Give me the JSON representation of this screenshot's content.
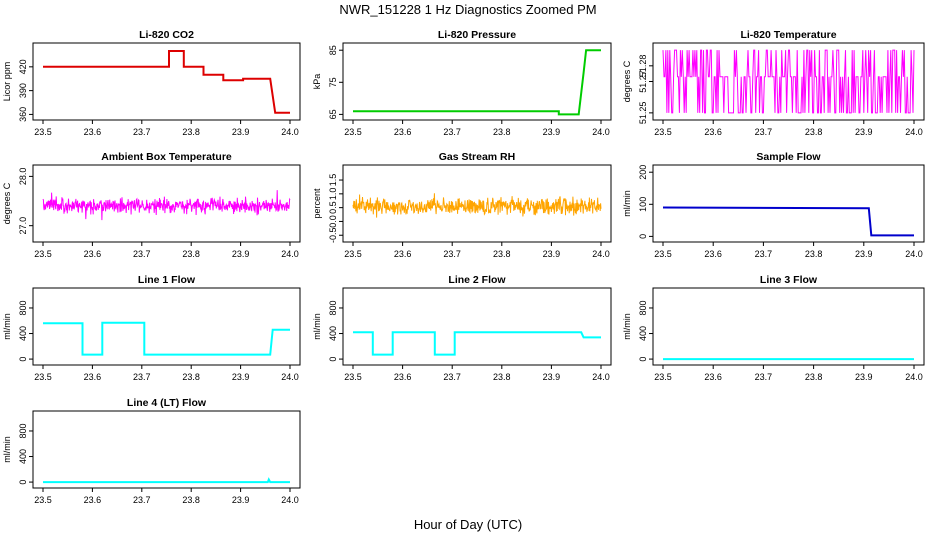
{
  "page": {
    "title": "NWR_151228  1 Hz Diagnostics Zoomed PM",
    "x_axis_title": "Hour of Day (UTC)"
  },
  "chart_data": [
    {
      "type": "line",
      "title": "Li-820 CO2",
      "ylabel": "Licor ppm",
      "color": "#dd0000",
      "xlim": [
        23.5,
        24.0
      ],
      "ylim": [
        358,
        445
      ],
      "x_ticks": [
        "23.5",
        "23.6",
        "23.7",
        "23.8",
        "23.9",
        "24.0"
      ],
      "y_ticks": [
        360,
        390,
        420
      ],
      "y_tick_labels": [
        "360",
        "390",
        "420"
      ],
      "series": [
        {
          "x": [
            23.5,
            23.755,
            23.755,
            23.785,
            23.785,
            23.825,
            23.825,
            23.865,
            23.865,
            23.905,
            23.905,
            23.96,
            23.97,
            24.0
          ],
          "y": [
            420,
            420,
            440,
            440,
            420,
            420,
            410,
            410,
            403,
            403,
            405,
            405,
            362,
            362
          ]
        }
      ]
    },
    {
      "type": "line",
      "title": "Li-820 Pressure",
      "ylabel": "kPa",
      "color": "#00cc00",
      "xlim": [
        23.5,
        24.0
      ],
      "ylim": [
        64.5,
        86
      ],
      "x_ticks": [
        "23.5",
        "23.6",
        "23.7",
        "23.8",
        "23.9",
        "24.0"
      ],
      "y_ticks": [
        65,
        75,
        85
      ],
      "y_tick_labels": [
        "65",
        "75",
        "85"
      ],
      "series": [
        {
          "x": [
            23.5,
            23.915,
            23.915,
            23.955,
            23.965,
            23.97,
            24.0
          ],
          "y": [
            66,
            66,
            65,
            65,
            78,
            85,
            85
          ]
        }
      ]
    },
    {
      "type": "line",
      "title": "Li-820 Temperature",
      "ylabel": "degrees C",
      "color": "#ff00ff",
      "xlim": [
        23.5,
        24.0
      ],
      "ylim": [
        51.248,
        51.292
      ],
      "x_ticks": [
        "23.5",
        "23.6",
        "23.7",
        "23.8",
        "23.9",
        "24.0"
      ],
      "y_ticks": [
        51.25,
        51.27,
        51.28
      ],
      "y_tick_labels": [
        "51.25",
        "51.27",
        "51.28"
      ],
      "pattern": "quantized-toggle",
      "levels": [
        51.25,
        51.273,
        51.29
      ]
    },
    {
      "type": "line",
      "title": "Ambient Box Temperature",
      "ylabel": "degrees C",
      "color": "#ff00ff",
      "xlim": [
        23.5,
        24.0
      ],
      "ylim": [
        26.75,
        28.15
      ],
      "x_ticks": [
        "23.5",
        "23.6",
        "23.7",
        "23.8",
        "23.9",
        "24.0"
      ],
      "y_ticks": [
        27.0,
        28.0
      ],
      "y_tick_labels": [
        "27.0",
        "28.0"
      ],
      "pattern": "noise",
      "mean": 27.4,
      "spread": 0.45
    },
    {
      "type": "line",
      "title": "Gas Stream RH",
      "ylabel": "percent",
      "color": "#ffa500",
      "xlim": [
        23.5,
        24.0
      ],
      "ylim": [
        -0.6,
        1.9
      ],
      "x_ticks": [
        "23.5",
        "23.6",
        "23.7",
        "23.8",
        "23.9",
        "24.0"
      ],
      "y_ticks": [
        -0.5,
        0.0,
        0.5,
        1.0,
        1.5
      ],
      "y_tick_labels": [
        "-0.5",
        "0.0",
        "0.5",
        "1.0",
        "1.5"
      ],
      "pattern": "noise",
      "mean": 0.55,
      "spread": 0.9
    },
    {
      "type": "line",
      "title": "Sample Flow",
      "ylabel": "ml/min",
      "color": "#0000cc",
      "xlim": [
        23.5,
        24.0
      ],
      "ylim": [
        -5,
        210
      ],
      "x_ticks": [
        "23.5",
        "23.6",
        "23.7",
        "23.8",
        "23.9",
        "24.0"
      ],
      "y_ticks": [
        0,
        100,
        200
      ],
      "y_tick_labels": [
        "0",
        "100",
        "200"
      ],
      "series": [
        {
          "x": [
            23.5,
            23.91,
            23.915,
            24.0
          ],
          "y": [
            90,
            88,
            3,
            3
          ]
        }
      ]
    },
    {
      "type": "line",
      "title": "Line 1 Flow",
      "ylabel": "ml/min",
      "color": "#00ffff",
      "xlim": [
        23.5,
        24.0
      ],
      "ylim": [
        -30,
        1050
      ],
      "x_ticks": [
        "23.5",
        "23.6",
        "23.7",
        "23.8",
        "23.9",
        "24.0"
      ],
      "y_ticks": [
        0,
        400,
        800
      ],
      "y_tick_labels": [
        "0",
        "400",
        "800"
      ],
      "series": [
        {
          "x": [
            23.5,
            23.58,
            23.58,
            23.62,
            23.62,
            23.705,
            23.705,
            23.96,
            23.965,
            24.0
          ],
          "y": [
            560,
            560,
            70,
            70,
            570,
            570,
            70,
            70,
            460,
            460
          ]
        }
      ]
    },
    {
      "type": "line",
      "title": "Line 2 Flow",
      "ylabel": "ml/min",
      "color": "#00ffff",
      "xlim": [
        23.5,
        24.0
      ],
      "ylim": [
        -30,
        1050
      ],
      "x_ticks": [
        "23.5",
        "23.6",
        "23.7",
        "23.8",
        "23.9",
        "24.0"
      ],
      "y_ticks": [
        0,
        400,
        800
      ],
      "y_tick_labels": [
        "0",
        "400",
        "800"
      ],
      "series": [
        {
          "x": [
            23.5,
            23.54,
            23.54,
            23.58,
            23.58,
            23.665,
            23.665,
            23.705,
            23.705,
            23.96,
            23.965,
            24.0
          ],
          "y": [
            420,
            420,
            70,
            70,
            420,
            420,
            70,
            70,
            420,
            420,
            340,
            340
          ]
        }
      ]
    },
    {
      "type": "line",
      "title": "Line 3 Flow",
      "ylabel": "ml/min",
      "color": "#00ffff",
      "xlim": [
        23.5,
        24.0
      ],
      "ylim": [
        -30,
        1050
      ],
      "x_ticks": [
        "23.5",
        "23.6",
        "23.7",
        "23.8",
        "23.9",
        "24.0"
      ],
      "y_ticks": [
        0,
        400,
        800
      ],
      "y_tick_labels": [
        "0",
        "400",
        "800"
      ],
      "series": [
        {
          "x": [
            23.5,
            24.0
          ],
          "y": [
            0,
            0
          ]
        }
      ]
    },
    {
      "type": "line",
      "title": "Line 4 (LT) Flow",
      "ylabel": "ml/min",
      "color": "#00ffff",
      "xlim": [
        23.5,
        24.0
      ],
      "ylim": [
        -30,
        1050
      ],
      "x_ticks": [
        "23.5",
        "23.6",
        "23.7",
        "23.8",
        "23.9",
        "24.0"
      ],
      "y_ticks": [
        0,
        400,
        800
      ],
      "y_tick_labels": [
        "0",
        "400",
        "800"
      ],
      "series": [
        {
          "x": [
            23.5,
            23.955,
            23.957,
            23.96,
            24.0
          ],
          "y": [
            0,
            0,
            40,
            0,
            0
          ]
        }
      ]
    }
  ]
}
